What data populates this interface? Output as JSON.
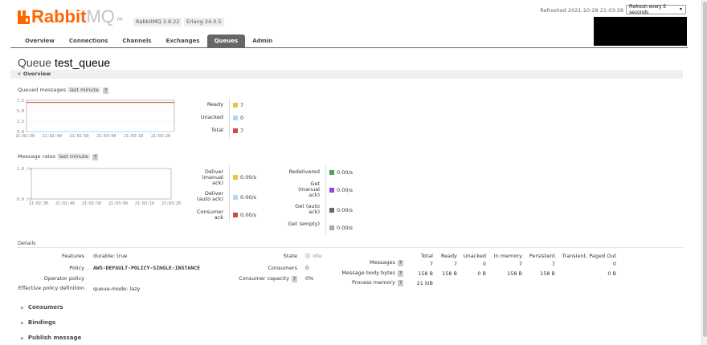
{
  "header": {
    "logo_main": "Rabbit",
    "logo_mq": "MQ",
    "logo_tm": "TM",
    "rabbitmq_version": "RabbitMQ 3.8.22",
    "erlang_version": "Erlang 24.0.5",
    "refreshed_text": "Refreshed 2021-10-28 21:03:28",
    "refresh_option": "Refresh every 5 seconds"
  },
  "tabs": [
    {
      "label": "Overview"
    },
    {
      "label": "Connections"
    },
    {
      "label": "Channels"
    },
    {
      "label": "Exchanges"
    },
    {
      "label": "Queues",
      "active": true
    },
    {
      "label": "Admin"
    }
  ],
  "queue": {
    "title_prefix": "Queue",
    "name": "test_queue"
  },
  "overview_section": {
    "label": "Overview"
  },
  "queued_messages": {
    "label": "Queued messages",
    "range": "last minute",
    "help": "?",
    "legend": [
      {
        "label": "Ready",
        "value": "7",
        "color": "#edc240"
      },
      {
        "label": "Unacked",
        "value": "0",
        "color": "#afd8f8"
      },
      {
        "label": "Total",
        "value": "7",
        "color": "#cb4b4b"
      }
    ]
  },
  "message_rates": {
    "label": "Message rates",
    "range": "last minute",
    "help": "?",
    "legend_left": [
      {
        "label": "Deliver (manual ack)",
        "value": "0.00/s",
        "color": "#edc240"
      },
      {
        "label": "Deliver (auto ack)",
        "value": "0.00/s",
        "color": "#afd8f8"
      },
      {
        "label": "Consumer ack",
        "value": "0.00/s",
        "color": "#cb4b4b"
      }
    ],
    "legend_right": [
      {
        "label": "Redelivered",
        "value": "0.00/s",
        "color": "#4da74d"
      },
      {
        "label": "Get (manual ack)",
        "value": "0.00/s",
        "color": "#9440ed"
      },
      {
        "label": "Get (auto ack)",
        "value": "0.00/s",
        "color": "#666666"
      },
      {
        "label": "Get (empty)",
        "value": "0.00/s",
        "color": "#aaaaaa"
      }
    ]
  },
  "chart_data": [
    {
      "type": "line",
      "x": [
        "21:02:30",
        "21:02:40",
        "21:02:50",
        "21:03:00",
        "21:03:10",
        "21:03:20"
      ],
      "ytick_labels": [
        "0.0",
        "2.5",
        "5.0",
        "7.5"
      ],
      "ylim": [
        0,
        7.5
      ],
      "series": [
        {
          "name": "Ready",
          "values": [
            7,
            7,
            7,
            7,
            7,
            7
          ],
          "color": "#edc240"
        },
        {
          "name": "Unacked",
          "values": [
            0,
            0,
            0,
            0,
            0,
            0
          ],
          "color": "#afd8f8"
        },
        {
          "name": "Total",
          "values": [
            7,
            7,
            7,
            7,
            7,
            7
          ],
          "color": "#cb4b4b"
        }
      ]
    },
    {
      "type": "line",
      "x": [
        "21:02:30",
        "21:02:40",
        "21:02:50",
        "21:03:00",
        "21:03:10",
        "21:03:20"
      ],
      "ytick_labels": [
        "0.0 /s",
        "1.0 /s"
      ],
      "ylim": [
        0,
        1
      ],
      "series": []
    }
  ],
  "details": {
    "label": "Details",
    "features_key": "Features",
    "features_value": "durable: true",
    "policy_key": "Policy",
    "policy_value": "AWS-DEFAULT-POLICY-SINGLE-INSTANCE",
    "operator_policy_key": "Operator policy",
    "operator_policy_value": "",
    "effective_policy_key": "Effective policy definition",
    "effective_policy_value": "queue-mode: lazy",
    "state_key": "State",
    "state_value": "idle",
    "consumers_key": "Consumers",
    "consumers_value": "0",
    "capacity_key": "Consumer capacity",
    "capacity_value": "0%",
    "table": {
      "headers": [
        "Total",
        "Ready",
        "Unacked",
        "In memory",
        "Persistent",
        "Transient, Paged Out"
      ],
      "rows": [
        {
          "label": "Messages",
          "cells": [
            "7",
            "7",
            "0",
            "7",
            "7",
            "0"
          ]
        },
        {
          "label": "Message body bytes",
          "cells": [
            "158 B",
            "158 B",
            "0 B",
            "158 B",
            "158 B",
            "0 B"
          ]
        },
        {
          "label": "Process memory",
          "cells": [
            "21 kiB"
          ]
        }
      ]
    }
  },
  "collapsed_sections": [
    {
      "label": "Consumers"
    },
    {
      "label": "Bindings"
    },
    {
      "label": "Publish message"
    }
  ]
}
